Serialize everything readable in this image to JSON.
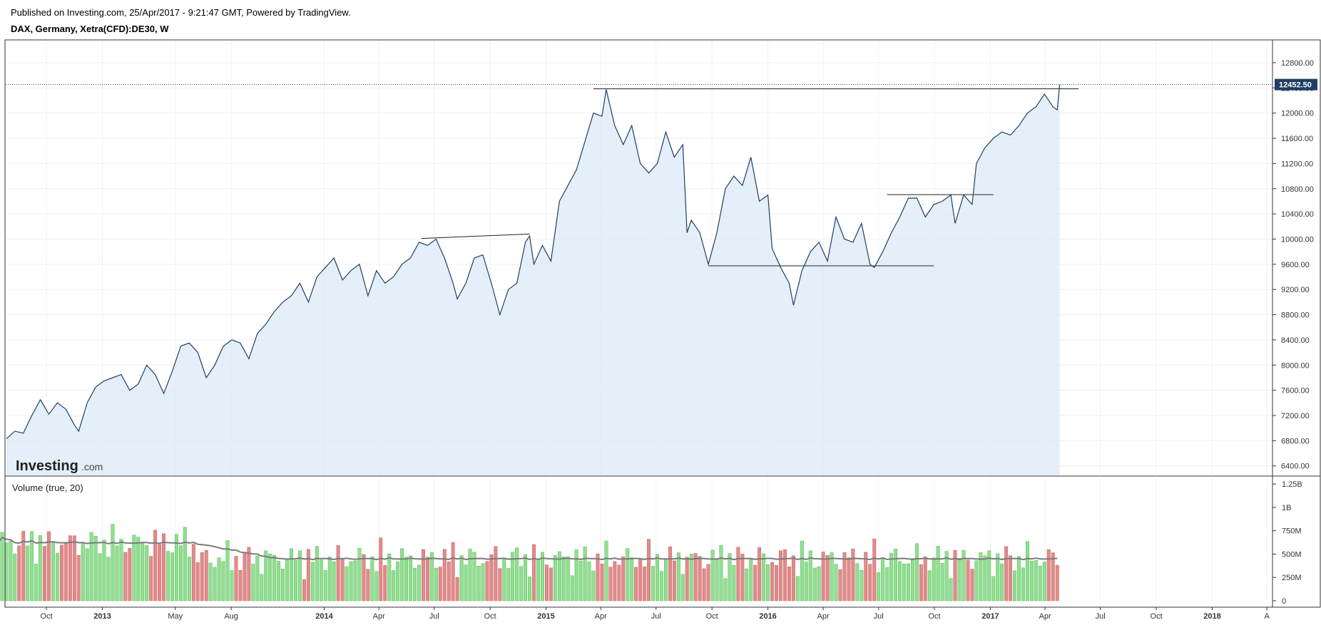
{
  "header": {
    "published": "Published on Investing.com, 25/Apr/2017 - 9:21:47 GMT, Powered by TradingView.",
    "symbol": "DAX, Germany, Xetra(CFD):DE30, W"
  },
  "watermark": {
    "brand": "Investing",
    "suffix": ".com"
  },
  "colors": {
    "line": "#1f3f63",
    "area": "#dbe9f7",
    "up_bar": "#8fe08f",
    "down_bar": "#e28a8a",
    "ma_line": "#7a7a7a",
    "last_price_bg": "#1f3f63"
  },
  "chart_data": {
    "type": "line",
    "title": "DAX, Germany, Xetra(CFD):DE30, W",
    "last_price_label": "12452.50",
    "price_axis": {
      "ticks": [
        "6400.00",
        "6800.00",
        "7200.00",
        "7600.00",
        "8000.00",
        "8400.00",
        "8800.00",
        "9200.00",
        "9600.00",
        "10000.00",
        "10400.00",
        "10800.00",
        "11200.00",
        "11600.00",
        "12000.00",
        "12400.00",
        "12800.00"
      ],
      "ylim": [
        6250,
        13150
      ]
    },
    "x_axis": {
      "labels": [
        {
          "label": "Oct",
          "date": "2012-10-01",
          "bold": false
        },
        {
          "label": "2013",
          "date": "2013-01-01",
          "bold": true
        },
        {
          "label": "May",
          "date": "2013-05-01",
          "bold": false
        },
        {
          "label": "Aug",
          "date": "2013-08-01",
          "bold": false
        },
        {
          "label": "2014",
          "date": "2014-01-01",
          "bold": true
        },
        {
          "label": "Apr",
          "date": "2014-04-01",
          "bold": false
        },
        {
          "label": "Jul",
          "date": "2014-07-01",
          "bold": false
        },
        {
          "label": "Oct",
          "date": "2014-10-01",
          "bold": false
        },
        {
          "label": "2015",
          "date": "2015-01-01",
          "bold": true
        },
        {
          "label": "Apr",
          "date": "2015-04-01",
          "bold": false
        },
        {
          "label": "Jul",
          "date": "2015-07-01",
          "bold": false
        },
        {
          "label": "Oct",
          "date": "2015-10-01",
          "bold": false
        },
        {
          "label": "2016",
          "date": "2016-01-01",
          "bold": true
        },
        {
          "label": "Apr",
          "date": "2016-04-01",
          "bold": false
        },
        {
          "label": "Jul",
          "date": "2016-07-01",
          "bold": false
        },
        {
          "label": "Oct",
          "date": "2016-10-01",
          "bold": false
        },
        {
          "label": "2017",
          "date": "2017-01-01",
          "bold": true
        },
        {
          "label": "Apr",
          "date": "2017-04-01",
          "bold": false
        },
        {
          "label": "Jul",
          "date": "2017-07-01",
          "bold": false
        },
        {
          "label": "Oct",
          "date": "2017-10-01",
          "bold": false
        },
        {
          "label": "2018",
          "date": "2018-01-01",
          "bold": true
        },
        {
          "label": "A",
          "date": "2018-04-01",
          "bold": false
        }
      ],
      "xlim": [
        "2012-07-26",
        "2018-04-09"
      ]
    },
    "price_series": [
      [
        "2012-07-27",
        6830
      ],
      [
        "2012-08-10",
        6950
      ],
      [
        "2012-08-24",
        6920
      ],
      [
        "2012-09-07",
        7200
      ],
      [
        "2012-09-21",
        7450
      ],
      [
        "2012-10-05",
        7220
      ],
      [
        "2012-10-19",
        7400
      ],
      [
        "2012-11-02",
        7300
      ],
      [
        "2012-11-16",
        7050
      ],
      [
        "2012-11-23",
        6950
      ],
      [
        "2012-12-07",
        7400
      ],
      [
        "2012-12-21",
        7650
      ],
      [
        "2013-01-04",
        7750
      ],
      [
        "2013-01-18",
        7800
      ],
      [
        "2013-02-01",
        7850
      ],
      [
        "2013-02-15",
        7600
      ],
      [
        "2013-03-01",
        7700
      ],
      [
        "2013-03-15",
        8000
      ],
      [
        "2013-03-29",
        7850
      ],
      [
        "2013-04-12",
        7550
      ],
      [
        "2013-04-26",
        7900
      ],
      [
        "2013-05-10",
        8300
      ],
      [
        "2013-05-24",
        8350
      ],
      [
        "2013-06-07",
        8200
      ],
      [
        "2013-06-21",
        7800
      ],
      [
        "2013-07-05",
        8000
      ],
      [
        "2013-07-19",
        8300
      ],
      [
        "2013-08-02",
        8400
      ],
      [
        "2013-08-16",
        8350
      ],
      [
        "2013-08-30",
        8100
      ],
      [
        "2013-09-13",
        8500
      ],
      [
        "2013-09-27",
        8650
      ],
      [
        "2013-10-11",
        8850
      ],
      [
        "2013-10-25",
        9000
      ],
      [
        "2013-11-08",
        9100
      ],
      [
        "2013-11-22",
        9300
      ],
      [
        "2013-12-06",
        9000
      ],
      [
        "2013-12-20",
        9400
      ],
      [
        "2014-01-03",
        9550
      ],
      [
        "2014-01-17",
        9700
      ],
      [
        "2014-01-31",
        9350
      ],
      [
        "2014-02-14",
        9500
      ],
      [
        "2014-02-28",
        9600
      ],
      [
        "2014-03-14",
        9100
      ],
      [
        "2014-03-28",
        9500
      ],
      [
        "2014-04-11",
        9300
      ],
      [
        "2014-04-25",
        9400
      ],
      [
        "2014-05-09",
        9600
      ],
      [
        "2014-05-23",
        9700
      ],
      [
        "2014-06-06",
        9950
      ],
      [
        "2014-06-20",
        9900
      ],
      [
        "2014-07-04",
        10000
      ],
      [
        "2014-07-18",
        9700
      ],
      [
        "2014-08-01",
        9300
      ],
      [
        "2014-08-08",
        9050
      ],
      [
        "2014-08-22",
        9300
      ],
      [
        "2014-09-05",
        9700
      ],
      [
        "2014-09-19",
        9750
      ],
      [
        "2014-10-03",
        9300
      ],
      [
        "2014-10-17",
        8800
      ],
      [
        "2014-10-31",
        9200
      ],
      [
        "2014-11-14",
        9300
      ],
      [
        "2014-11-28",
        9950
      ],
      [
        "2014-12-05",
        10050
      ],
      [
        "2014-12-12",
        9600
      ],
      [
        "2014-12-26",
        9900
      ],
      [
        "2015-01-09",
        9650
      ],
      [
        "2015-01-23",
        10600
      ],
      [
        "2015-02-06",
        10850
      ],
      [
        "2015-02-20",
        11100
      ],
      [
        "2015-03-06",
        11550
      ],
      [
        "2015-03-20",
        12000
      ],
      [
        "2015-04-03",
        11950
      ],
      [
        "2015-04-10",
        12375
      ],
      [
        "2015-04-24",
        11800
      ],
      [
        "2015-05-08",
        11500
      ],
      [
        "2015-05-22",
        11800
      ],
      [
        "2015-06-05",
        11200
      ],
      [
        "2015-06-19",
        11050
      ],
      [
        "2015-07-03",
        11200
      ],
      [
        "2015-07-17",
        11700
      ],
      [
        "2015-07-31",
        11300
      ],
      [
        "2015-08-14",
        11500
      ],
      [
        "2015-08-21",
        10100
      ],
      [
        "2015-08-28",
        10300
      ],
      [
        "2015-09-11",
        10100
      ],
      [
        "2015-09-25",
        9600
      ],
      [
        "2015-10-09",
        10100
      ],
      [
        "2015-10-23",
        10800
      ],
      [
        "2015-11-06",
        11000
      ],
      [
        "2015-11-20",
        10850
      ],
      [
        "2015-12-04",
        11300
      ],
      [
        "2015-12-18",
        10600
      ],
      [
        "2016-01-01",
        10700
      ],
      [
        "2016-01-08",
        9850
      ],
      [
        "2016-01-22",
        9550
      ],
      [
        "2016-02-05",
        9300
      ],
      [
        "2016-02-12",
        8950
      ],
      [
        "2016-02-26",
        9500
      ],
      [
        "2016-03-11",
        9800
      ],
      [
        "2016-03-25",
        9950
      ],
      [
        "2016-04-08",
        9650
      ],
      [
        "2016-04-22",
        10350
      ],
      [
        "2016-05-06",
        10000
      ],
      [
        "2016-05-20",
        9950
      ],
      [
        "2016-06-03",
        10250
      ],
      [
        "2016-06-17",
        9600
      ],
      [
        "2016-06-24",
        9550
      ],
      [
        "2016-07-08",
        9800
      ],
      [
        "2016-07-22",
        10100
      ],
      [
        "2016-08-05",
        10350
      ],
      [
        "2016-08-19",
        10650
      ],
      [
        "2016-09-02",
        10650
      ],
      [
        "2016-09-16",
        10350
      ],
      [
        "2016-09-30",
        10550
      ],
      [
        "2016-10-14",
        10600
      ],
      [
        "2016-10-28",
        10700
      ],
      [
        "2016-11-04",
        10250
      ],
      [
        "2016-11-18",
        10700
      ],
      [
        "2016-12-02",
        10550
      ],
      [
        "2016-12-09",
        11200
      ],
      [
        "2016-12-23",
        11450
      ],
      [
        "2017-01-06",
        11600
      ],
      [
        "2017-01-20",
        11700
      ],
      [
        "2017-02-03",
        11650
      ],
      [
        "2017-02-17",
        11800
      ],
      [
        "2017-03-03",
        12000
      ],
      [
        "2017-03-17",
        12100
      ],
      [
        "2017-03-31",
        12300
      ],
      [
        "2017-04-14",
        12100
      ],
      [
        "2017-04-21",
        12050
      ],
      [
        "2017-04-25",
        12452.5
      ]
    ],
    "trendlines": [
      {
        "from": [
          "2014-06-10",
          10010
        ],
        "to": [
          "2014-12-05",
          10080
        ]
      },
      {
        "from": [
          "2015-03-20",
          12385
        ],
        "to": [
          "2017-05-26",
          12385
        ]
      },
      {
        "from": [
          "2015-09-25",
          9575
        ],
        "to": [
          "2016-09-30",
          9575
        ]
      },
      {
        "from": [
          "2016-07-15",
          10705
        ],
        "to": [
          "2017-01-06",
          10705
        ]
      }
    ],
    "volume": {
      "label": "Volume (true, 20)",
      "ticks": [
        "0",
        "250M",
        "500M",
        "750M",
        "1B",
        "1.25B"
      ],
      "ylim": [
        0,
        1320
      ],
      "unit": "M"
    }
  }
}
